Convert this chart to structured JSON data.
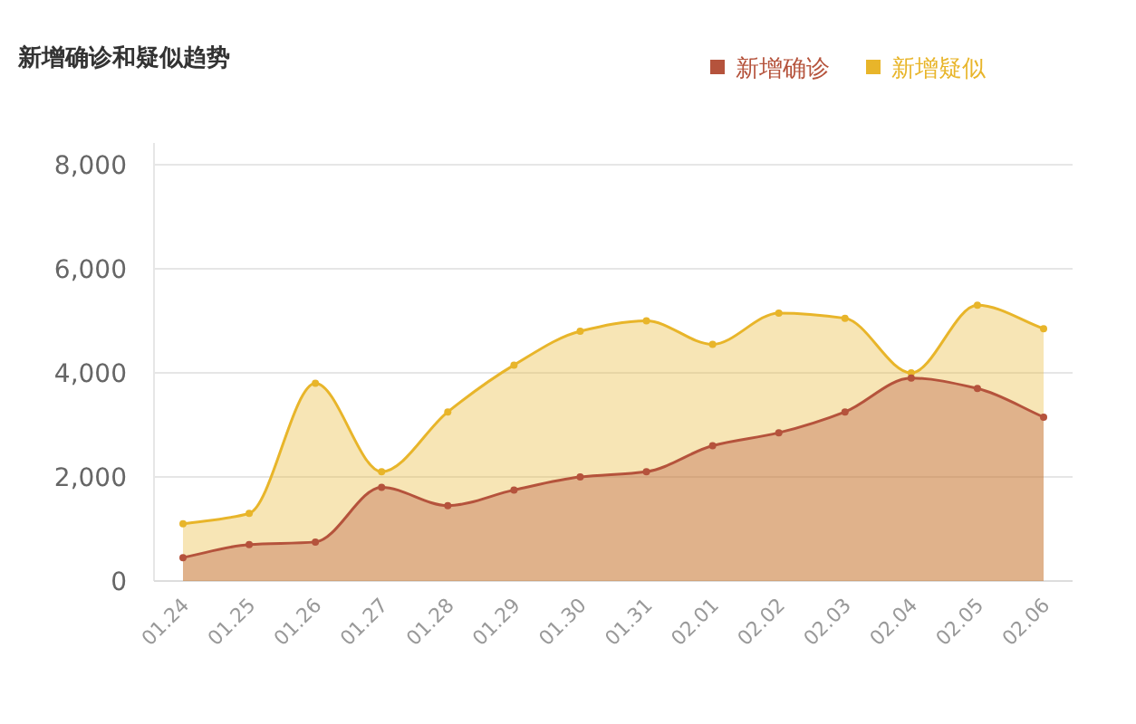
{
  "chart_data": {
    "type": "area",
    "title": "新增确诊和疑似趋势",
    "categories": [
      "01.24",
      "01.25",
      "01.26",
      "01.27",
      "01.28",
      "01.29",
      "01.30",
      "01.31",
      "02.01",
      "02.02",
      "02.03",
      "02.04",
      "02.05",
      "02.06"
    ],
    "series": [
      {
        "name": "新增确诊",
        "color": "#b5533c",
        "values": [
          450,
          700,
          750,
          1800,
          1450,
          1750,
          2000,
          2100,
          2600,
          2850,
          3250,
          3900,
          3700,
          3150
        ]
      },
      {
        "name": "新增疑似",
        "color": "#e8b52a",
        "values": [
          1100,
          1300,
          3800,
          2100,
          3250,
          4150,
          4800,
          5000,
          4550,
          5150,
          5050,
          4000,
          5300,
          4850
        ]
      }
    ],
    "ylim": [
      0,
      8000
    ],
    "yticks": [
      {
        "value": 0,
        "label": "0"
      },
      {
        "value": 2000,
        "label": "2,000"
      },
      {
        "value": 4000,
        "label": "4,000"
      },
      {
        "value": 6000,
        "label": "6,000"
      },
      {
        "value": 8000,
        "label": "8,000"
      }
    ],
    "grid": "y",
    "legend": "top right",
    "marker": "circle",
    "line_style": "solid"
  }
}
